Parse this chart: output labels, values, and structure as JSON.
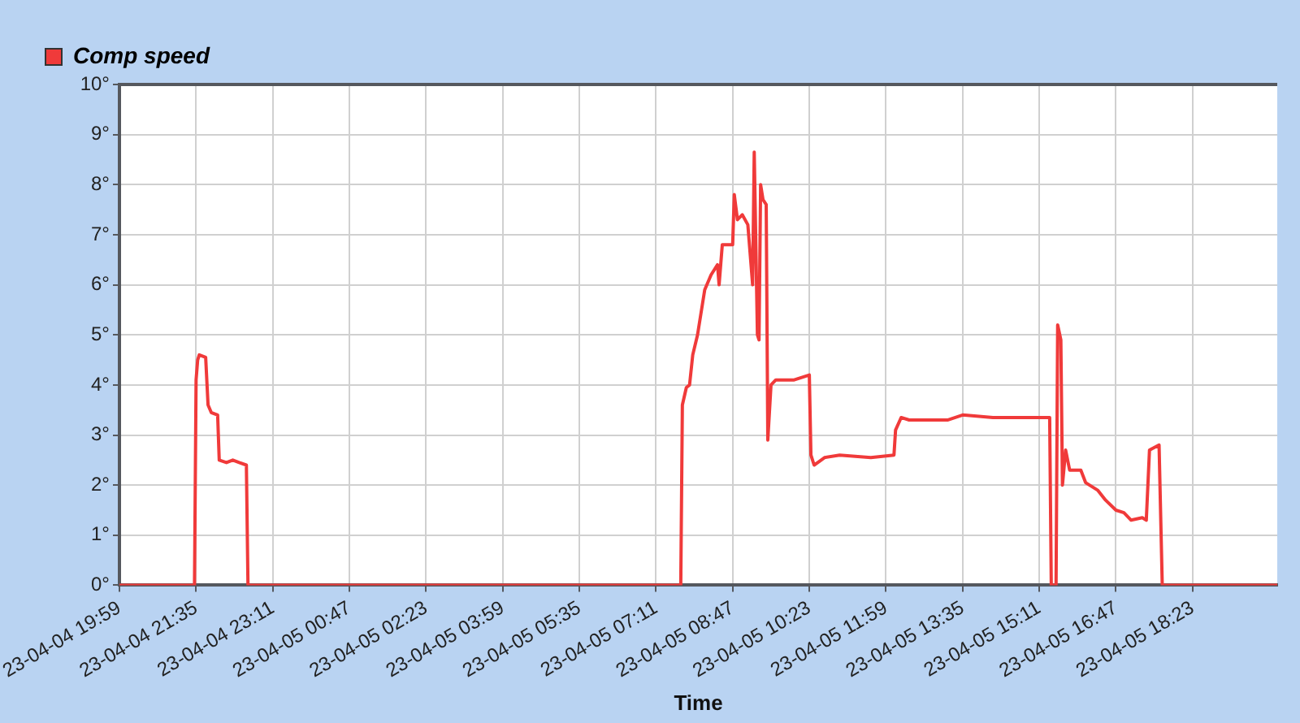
{
  "chart_data": {
    "type": "line",
    "xlabel": "Time",
    "legend": "top left",
    "grid": true,
    "marker": "none",
    "line_style": "solid",
    "xlim": [
      "--04-04T19:59",
      "--04-05T20:09"
    ],
    "ylim": [
      0,
      10
    ],
    "xticks": [
      {
        "value": "--04-04T19:59",
        "label": "23-04-04 19:59"
      },
      {
        "value": "--04-04T21:35",
        "label": "23-04-04 21:35"
      },
      {
        "value": "--04-04T23:11",
        "label": "23-04-04 23:11"
      },
      {
        "value": "--04-05T00:47",
        "label": "23-04-05 00:47"
      },
      {
        "value": "--04-05T02:23",
        "label": "23-04-05 02:23"
      },
      {
        "value": "--04-05T03:59",
        "label": "23-04-05 03:59"
      },
      {
        "value": "--04-05T05:35",
        "label": "23-04-05 05:35"
      },
      {
        "value": "--04-05T07:11",
        "label": "23-04-05 07:11"
      },
      {
        "value": "--04-05T08:47",
        "label": "23-04-05 08:47"
      },
      {
        "value": "--04-05T10:23",
        "label": "23-04-05 10:23"
      },
      {
        "value": "--04-05T11:59",
        "label": "23-04-05 11:59"
      },
      {
        "value": "--04-05T13:35",
        "label": "23-04-05 13:35"
      },
      {
        "value": "--04-05T15:11",
        "label": "23-04-05 15:11"
      },
      {
        "value": "--04-05T16:47",
        "label": "23-04-05 16:47"
      },
      {
        "value": "--04-05T18:23",
        "label": "23-04-05 18:23"
      }
    ],
    "yticks": [
      {
        "value": 0,
        "label": "0°"
      },
      {
        "value": 1,
        "label": "1°"
      },
      {
        "value": 2,
        "label": "2°"
      },
      {
        "value": 3,
        "label": "3°"
      },
      {
        "value": 4,
        "label": "4°"
      },
      {
        "value": 5,
        "label": "5°"
      },
      {
        "value": 6,
        "label": "6°"
      },
      {
        "value": 7,
        "label": "7°"
      },
      {
        "value": 8,
        "label": "8°"
      },
      {
        "value": 9,
        "label": "9°"
      },
      {
        "value": 10,
        "label": "10°"
      }
    ],
    "series": [
      {
        "name": "Comp speed",
        "color": "#f03a3a",
        "x": [
          "--04-04T19:59",
          "--04-04T21:33",
          "--04-04T21:35",
          "--04-04T21:37",
          "--04-04T21:39",
          "--04-04T21:47",
          "--04-04T21:50",
          "--04-04T21:54",
          "--04-04T22:02",
          "--04-04T22:04",
          "--04-04T22:13",
          "--04-04T22:21",
          "--04-04T22:29",
          "--04-04T22:38",
          "--04-04T22:40",
          "--04-05T07:42",
          "--04-05T07:44",
          "--04-05T07:49",
          "--04-05T07:53",
          "--04-05T07:57",
          "--04-05T08:03",
          "--04-05T08:09",
          "--04-05T08:12",
          "--04-05T08:20",
          "--04-05T08:28",
          "--04-05T08:30",
          "--04-05T08:34",
          "--04-05T08:47",
          "--04-05T08:49",
          "--04-05T08:53",
          "--04-05T08:59",
          "--04-05T09:06",
          "--04-05T09:12",
          "--04-05T09:14",
          "--04-05T09:18",
          "--04-05T09:20",
          "--04-05T09:22",
          "--04-05T09:25",
          "--04-05T09:29",
          "--04-05T09:31",
          "--04-05T09:35",
          "--04-05T09:41",
          "--04-05T10:04",
          "--04-05T10:23",
          "--04-05T10:25",
          "--04-05T10:29",
          "--04-05T10:42",
          "--04-05T11:01",
          "--04-05T11:40",
          "--04-05T12:09",
          "--04-05T12:11",
          "--04-05T12:18",
          "--04-05T12:28",
          "--04-05T13:16",
          "--04-05T13:35",
          "--04-05T14:13",
          "--04-05T14:52",
          "--04-05T15:24",
          "--04-05T15:26",
          "--04-05T15:32",
          "--04-05T15:34",
          "--04-05T15:38",
          "--04-05T15:40",
          "--04-05T15:44",
          "--04-05T15:49",
          "--04-05T16:03",
          "--04-05T16:09",
          "--04-05T16:24",
          "--04-05T16:34",
          "--04-05T16:47",
          "--04-05T16:57",
          "--04-05T17:06",
          "--04-05T17:20",
          "--04-05T17:25",
          "--04-05T17:29",
          "--04-05T17:41",
          "--04-05T17:45",
          "--04-05T20:09"
        ],
        "values": [
          0,
          0,
          4.1,
          4.5,
          4.6,
          4.55,
          3.6,
          3.45,
          3.4,
          2.5,
          2.45,
          2.5,
          2.45,
          2.4,
          0,
          0,
          3.6,
          3.95,
          4.0,
          4.6,
          5.0,
          5.6,
          5.9,
          6.2,
          6.4,
          6.0,
          6.8,
          6.8,
          7.8,
          7.3,
          7.4,
          7.2,
          6.0,
          8.65,
          5.0,
          4.9,
          8.0,
          7.7,
          7.6,
          2.9,
          4.0,
          4.1,
          4.1,
          4.2,
          2.6,
          2.4,
          2.55,
          2.6,
          2.55,
          2.6,
          3.1,
          3.35,
          3.3,
          3.3,
          3.4,
          3.35,
          3.35,
          3.35,
          0,
          0,
          5.2,
          4.9,
          2.0,
          2.7,
          2.3,
          2.3,
          2.05,
          1.9,
          1.7,
          1.5,
          1.45,
          1.3,
          1.35,
          1.3,
          2.7,
          2.8,
          0,
          0
        ]
      }
    ]
  }
}
